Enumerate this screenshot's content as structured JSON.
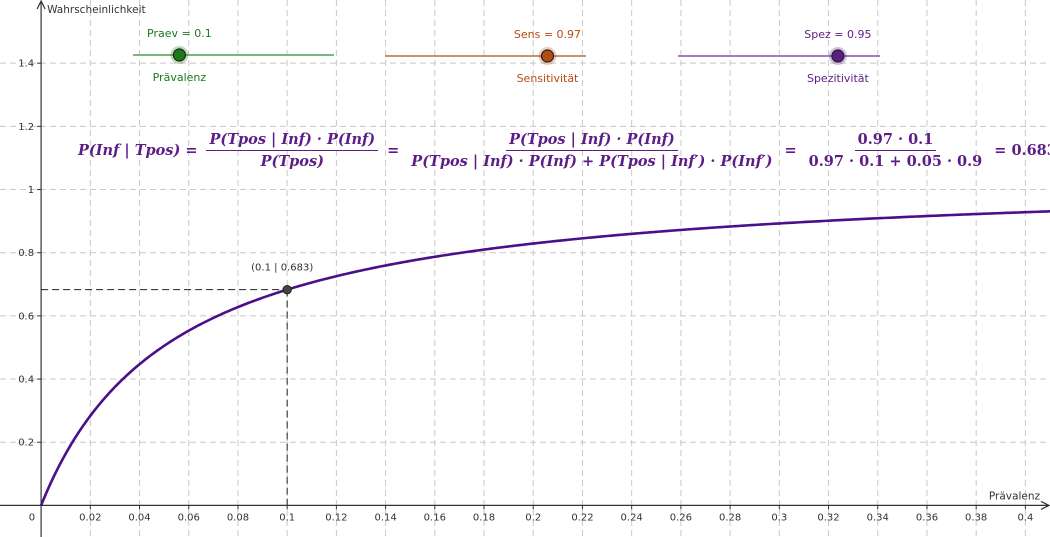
{
  "chart_data": {
    "type": "line",
    "xlabel": "Prävalenz",
    "ylabel": "Wahrscheinlichkeit",
    "xlim": [
      -0.0167,
      0.41
    ],
    "ylim": [
      -0.1,
      1.6
    ],
    "x_ticks": [
      "0",
      "0.02",
      "0.04",
      "0.06",
      "0.08",
      "0.1",
      "0.12",
      "0.14",
      "0.16",
      "0.18",
      "0.2",
      "0.22",
      "0.24",
      "0.26",
      "0.28",
      "0.3",
      "0.32",
      "0.34",
      "0.36",
      "0.38",
      "0.4"
    ],
    "y_ticks": [
      "0.2",
      "0.4",
      "0.6",
      "0.8",
      "1",
      "1.2",
      "1.4"
    ],
    "grid": true,
    "series": [
      {
        "function": "Sens*x / (Sens*x + (1-Spez)*(1-x))",
        "color": "#4b0f8a",
        "x_range": [
          0,
          0.41
        ]
      }
    ],
    "point": {
      "x": 0.1,
      "y": 0.683,
      "label": "(0.1 | 0.683)"
    },
    "guide_lines": "dashed"
  },
  "sliders": [
    {
      "id": "praev",
      "value_label": "Praev = 0.1",
      "name": "Prävalenz",
      "value": 0.1,
      "min": -0.05,
      "max": 0.6,
      "color": "#1a7a1a",
      "line_color": "#7ab87a"
    },
    {
      "id": "sens",
      "value_label": "Sens = 0.97",
      "name": "Sensitivität",
      "value": 0.97,
      "min": 0,
      "max": 1.2,
      "color": "#b34c12",
      "line_color": "#c4946f"
    },
    {
      "id": "spez",
      "value_label": "Spez = 0.95",
      "name": "Spezitivität",
      "value": 0.95,
      "min": 0,
      "max": 1.2,
      "color": "#5c1d87",
      "line_color": "#a07cc0"
    }
  ],
  "formula": {
    "lhs": "P(Inf | Tpos)",
    "eq": "=",
    "f1_num": "P(Tpos | Inf) · P(Inf)",
    "f1_den": "P(Tpos)",
    "f2_num": "P(Tpos | Inf) · P(Inf)",
    "f2_den": "P(Tpos | Inf) · P(Inf) + P(Tpos | Inf′) · P(Inf′)",
    "f3_num": "0.97 · 0.1",
    "f3_den": "0.97 · 0.1 + 0.05 · 0.9",
    "result": "0.683"
  }
}
